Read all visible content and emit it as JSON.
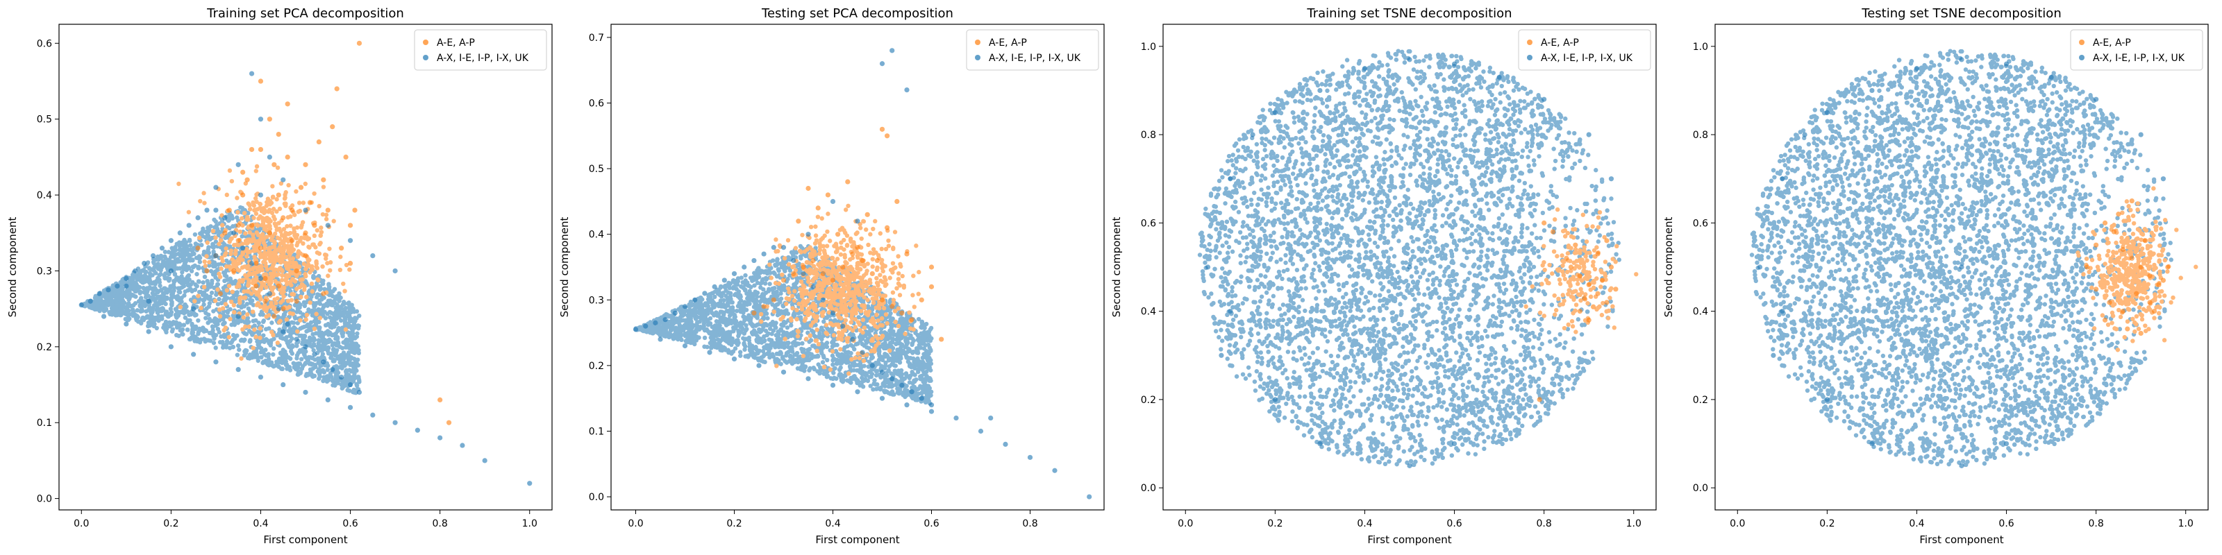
{
  "figure": {
    "background": "#ffffff"
  },
  "colors": {
    "orange": "#ff7f0e",
    "blue": "#1f77b4"
  },
  "chart_data": [
    {
      "type": "scatter",
      "title": "Training set PCA decomposition",
      "xlabel": "First component",
      "ylabel": "Second component",
      "xlim": [
        -0.05,
        1.05
      ],
      "ylim": [
        -0.015,
        0.625
      ],
      "xticks": [
        "0.0",
        "0.2",
        "0.4",
        "0.6",
        "0.8",
        "1.0"
      ],
      "yticks": [
        "0.0",
        "0.1",
        "0.2",
        "0.3",
        "0.4",
        "0.5",
        "0.6"
      ],
      "legend_position": "top-right",
      "grid": false,
      "series": [
        {
          "name": "A-E, A-P",
          "color": "#ff7f0e",
          "x": [
            0.3,
            0.35,
            0.38,
            0.4,
            0.42,
            0.45,
            0.48,
            0.5,
            0.33,
            0.36,
            0.39,
            0.41,
            0.44,
            0.47,
            0.52,
            0.55,
            0.37,
            0.43,
            0.46,
            0.49,
            0.51,
            0.31,
            0.34,
            0.58,
            0.6,
            0.62,
            0.42,
            0.44,
            0.46,
            0.4,
            0.38,
            0.5,
            0.53,
            0.56,
            0.57,
            0.59,
            0.6,
            0.54,
            0.48,
            0.45,
            0.43,
            0.41,
            0.39,
            0.35,
            0.32,
            0.28,
            0.26,
            0.36,
            0.4,
            0.44,
            0.47,
            0.5,
            0.54,
            0.61,
            0.8,
            0.82
          ],
          "y": [
            0.32,
            0.34,
            0.36,
            0.33,
            0.35,
            0.37,
            0.3,
            0.32,
            0.38,
            0.4,
            0.31,
            0.29,
            0.28,
            0.34,
            0.36,
            0.38,
            0.42,
            0.44,
            0.45,
            0.41,
            0.39,
            0.27,
            0.3,
            0.33,
            0.31,
            0.6,
            0.5,
            0.48,
            0.52,
            0.55,
            0.46,
            0.44,
            0.47,
            0.49,
            0.54,
            0.45,
            0.36,
            0.27,
            0.26,
            0.25,
            0.24,
            0.26,
            0.28,
            0.36,
            0.35,
            0.3,
            0.33,
            0.43,
            0.46,
            0.4,
            0.38,
            0.35,
            0.42,
            0.38,
            0.13,
            0.1
          ]
        },
        {
          "name": "A-X, I-E, I-P, I-X, UK",
          "color": "#1f77b4",
          "x": [
            0.0,
            0.02,
            0.04,
            0.06,
            0.08,
            0.1,
            0.12,
            0.14,
            0.16,
            0.18,
            0.2,
            0.22,
            0.24,
            0.26,
            0.28,
            0.3,
            0.32,
            0.34,
            0.36,
            0.38,
            0.4,
            0.42,
            0.44,
            0.46,
            0.48,
            0.5,
            0.52,
            0.54,
            0.56,
            0.58,
            0.6,
            0.62,
            0.05,
            0.1,
            0.15,
            0.2,
            0.25,
            0.3,
            0.35,
            0.4,
            0.45,
            0.5,
            0.55,
            0.6,
            0.65,
            0.7,
            0.75,
            0.8,
            0.85,
            0.9,
            1.0,
            0.1,
            0.2,
            0.3,
            0.15,
            0.25,
            0.35,
            0.45,
            0.4,
            0.45,
            0.5,
            0.55,
            0.6,
            0.65,
            0.7,
            0.3,
            0.35,
            0.4,
            0.38,
            0.42
          ],
          "y": [
            0.255,
            0.26,
            0.27,
            0.275,
            0.28,
            0.29,
            0.3,
            0.31,
            0.32,
            0.33,
            0.34,
            0.35,
            0.36,
            0.37,
            0.38,
            0.38,
            0.37,
            0.35,
            0.33,
            0.31,
            0.29,
            0.27,
            0.25,
            0.23,
            0.21,
            0.2,
            0.19,
            0.18,
            0.17,
            0.16,
            0.15,
            0.14,
            0.24,
            0.23,
            0.22,
            0.2,
            0.19,
            0.18,
            0.17,
            0.16,
            0.15,
            0.14,
            0.13,
            0.12,
            0.11,
            0.1,
            0.09,
            0.08,
            0.07,
            0.05,
            0.02,
            0.28,
            0.3,
            0.32,
            0.26,
            0.25,
            0.24,
            0.22,
            0.4,
            0.42,
            0.38,
            0.36,
            0.34,
            0.32,
            0.3,
            0.41,
            0.44,
            0.5,
            0.56,
            0.45
          ]
        }
      ]
    },
    {
      "type": "scatter",
      "title": "Testing set PCA decomposition",
      "xlabel": "First component",
      "ylabel": "Second component",
      "xlim": [
        -0.05,
        0.95
      ],
      "ylim": [
        -0.02,
        0.72
      ],
      "xticks": [
        "0.0",
        "0.2",
        "0.4",
        "0.6",
        "0.8"
      ],
      "yticks": [
        "0.0",
        "0.1",
        "0.2",
        "0.3",
        "0.4",
        "0.5",
        "0.6",
        "0.7"
      ],
      "legend_position": "top-right",
      "grid": false,
      "series": [
        {
          "name": "A-E, A-P",
          "color": "#ff7f0e",
          "x": [
            0.3,
            0.32,
            0.34,
            0.36,
            0.38,
            0.4,
            0.42,
            0.44,
            0.46,
            0.48,
            0.5,
            0.52,
            0.54,
            0.56,
            0.58,
            0.6,
            0.33,
            0.37,
            0.41,
            0.45,
            0.49,
            0.35,
            0.39,
            0.43,
            0.47,
            0.51,
            0.28,
            0.26,
            0.24,
            0.55,
            0.6,
            0.62,
            0.5,
            0.51,
            0.53
          ],
          "y": [
            0.33,
            0.34,
            0.35,
            0.36,
            0.34,
            0.33,
            0.35,
            0.37,
            0.36,
            0.34,
            0.3,
            0.29,
            0.28,
            0.27,
            0.3,
            0.32,
            0.42,
            0.44,
            0.4,
            0.38,
            0.36,
            0.47,
            0.46,
            0.48,
            0.43,
            0.41,
            0.3,
            0.29,
            0.28,
            0.37,
            0.35,
            0.24,
            0.56,
            0.55,
            0.45
          ]
        },
        {
          "name": "A-X, I-E, I-P, I-X, UK",
          "color": "#1f77b4",
          "x": [
            0.0,
            0.02,
            0.04,
            0.06,
            0.08,
            0.1,
            0.12,
            0.14,
            0.16,
            0.18,
            0.2,
            0.22,
            0.24,
            0.26,
            0.28,
            0.3,
            0.32,
            0.34,
            0.36,
            0.38,
            0.4,
            0.42,
            0.44,
            0.46,
            0.48,
            0.5,
            0.52,
            0.54,
            0.56,
            0.58,
            0.6,
            0.05,
            0.1,
            0.15,
            0.2,
            0.25,
            0.3,
            0.35,
            0.4,
            0.45,
            0.5,
            0.55,
            0.6,
            0.65,
            0.7,
            0.72,
            0.75,
            0.8,
            0.85,
            0.92,
            0.5,
            0.52,
            0.55,
            0.35,
            0.4,
            0.45
          ],
          "y": [
            0.255,
            0.26,
            0.265,
            0.27,
            0.28,
            0.29,
            0.3,
            0.31,
            0.32,
            0.33,
            0.34,
            0.35,
            0.36,
            0.37,
            0.38,
            0.38,
            0.36,
            0.34,
            0.32,
            0.3,
            0.28,
            0.26,
            0.24,
            0.22,
            0.2,
            0.19,
            0.18,
            0.17,
            0.16,
            0.15,
            0.14,
            0.24,
            0.23,
            0.22,
            0.21,
            0.2,
            0.19,
            0.18,
            0.17,
            0.16,
            0.15,
            0.14,
            0.13,
            0.12,
            0.1,
            0.12,
            0.08,
            0.06,
            0.04,
            0.0,
            0.66,
            0.68,
            0.62,
            0.4,
            0.45,
            0.42
          ]
        }
      ]
    },
    {
      "type": "scatter",
      "title": "Training set TSNE decomposition",
      "xlabel": "First component",
      "ylabel": "Second component",
      "xlim": [
        -0.05,
        1.05
      ],
      "ylim": [
        -0.05,
        1.05
      ],
      "xticks": [
        "0.0",
        "0.2",
        "0.4",
        "0.6",
        "0.8",
        "1.0"
      ],
      "yticks": [
        "0.0",
        "0.2",
        "0.4",
        "0.6",
        "0.8",
        "1.0"
      ],
      "legend_position": "top-right",
      "grid": false,
      "series": [
        {
          "name": "A-E, A-P",
          "color": "#ff7f0e",
          "x": [
            0.86,
            0.88,
            0.9,
            0.92,
            0.94,
            0.96,
            0.85,
            0.87,
            0.89,
            0.91,
            0.93,
            0.95,
            0.9,
            0.92,
            0.94,
            0.88,
            0.8,
            0.82,
            0.79
          ],
          "y": [
            0.5,
            0.48,
            0.46,
            0.44,
            0.42,
            0.45,
            0.52,
            0.55,
            0.43,
            0.41,
            0.47,
            0.5,
            0.38,
            0.53,
            0.56,
            0.4,
            0.6,
            0.58,
            0.2
          ]
        },
        {
          "name": "A-X, I-E, I-P, I-X, UK",
          "color": "#1f77b4",
          "x": [
            0.1,
            0.15,
            0.2,
            0.3,
            0.4,
            0.5,
            0.6,
            0.7,
            0.8,
            0.9,
            0.95,
            0.1,
            0.05,
            0.08,
            0.2,
            0.5,
            0.6,
            0.3,
            0.5
          ],
          "y": [
            0.7,
            0.8,
            0.85,
            0.9,
            0.95,
            0.97,
            0.96,
            0.93,
            0.88,
            0.8,
            0.7,
            0.4,
            0.5,
            0.3,
            0.2,
            0.05,
            0.1,
            0.1,
            0.5
          ]
        }
      ]
    },
    {
      "type": "scatter",
      "title": "Testing set TSNE decomposition",
      "xlabel": "First component",
      "ylabel": "Second component",
      "xlim": [
        -0.05,
        1.05
      ],
      "ylim": [
        -0.05,
        1.05
      ],
      "xticks": [
        "0.0",
        "0.2",
        "0.4",
        "0.6",
        "0.8",
        "1.0"
      ],
      "yticks": [
        "0.0",
        "0.2",
        "0.4",
        "0.6",
        "0.8",
        "1.0"
      ],
      "legend_position": "top-right",
      "grid": false,
      "series": [
        {
          "name": "A-E, A-P",
          "color": "#ff7f0e",
          "x": [
            0.78,
            0.8,
            0.82,
            0.84,
            0.86,
            0.88,
            0.9,
            0.92,
            0.94,
            0.96,
            0.8,
            0.83,
            0.86,
            0.89,
            0.92,
            0.95,
            0.85,
            0.88,
            0.91,
            0.82,
            0.87,
            0.9,
            0.93
          ],
          "y": [
            0.5,
            0.55,
            0.6,
            0.58,
            0.54,
            0.52,
            0.5,
            0.48,
            0.46,
            0.5,
            0.45,
            0.42,
            0.4,
            0.44,
            0.42,
            0.47,
            0.62,
            0.65,
            0.56,
            0.38,
            0.36,
            0.35,
            0.4
          ]
        },
        {
          "name": "A-X, I-E, I-P, I-X, UK",
          "color": "#1f77b4",
          "x": [
            0.1,
            0.15,
            0.2,
            0.3,
            0.4,
            0.5,
            0.6,
            0.7,
            0.8,
            0.9,
            0.95,
            0.1,
            0.05,
            0.08,
            0.2,
            0.5,
            0.6,
            0.3,
            0.5
          ],
          "y": [
            0.7,
            0.8,
            0.85,
            0.9,
            0.95,
            0.97,
            0.96,
            0.93,
            0.88,
            0.8,
            0.7,
            0.4,
            0.5,
            0.3,
            0.2,
            0.05,
            0.1,
            0.1,
            0.5
          ]
        }
      ]
    }
  ]
}
